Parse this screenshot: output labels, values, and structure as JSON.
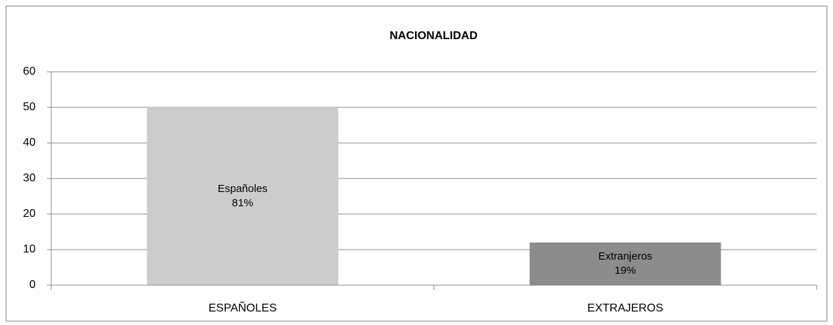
{
  "chart_data": {
    "type": "bar",
    "title": "NACIONALIDAD",
    "categories": [
      "ESPAÑOLES",
      "EXTRAJEROS"
    ],
    "series": [
      {
        "name": null,
        "colors": [
          "#cccccc",
          "#8c8c8c"
        ],
        "values": [
          50,
          12
        ]
      }
    ],
    "annotations": [
      [
        "Españoles",
        "81%"
      ],
      [
        "Extranjeros",
        "19%"
      ]
    ],
    "ylim": [
      0,
      60
    ],
    "yticks": [
      0,
      10,
      20,
      30,
      40,
      50,
      60
    ],
    "grid": true
  }
}
